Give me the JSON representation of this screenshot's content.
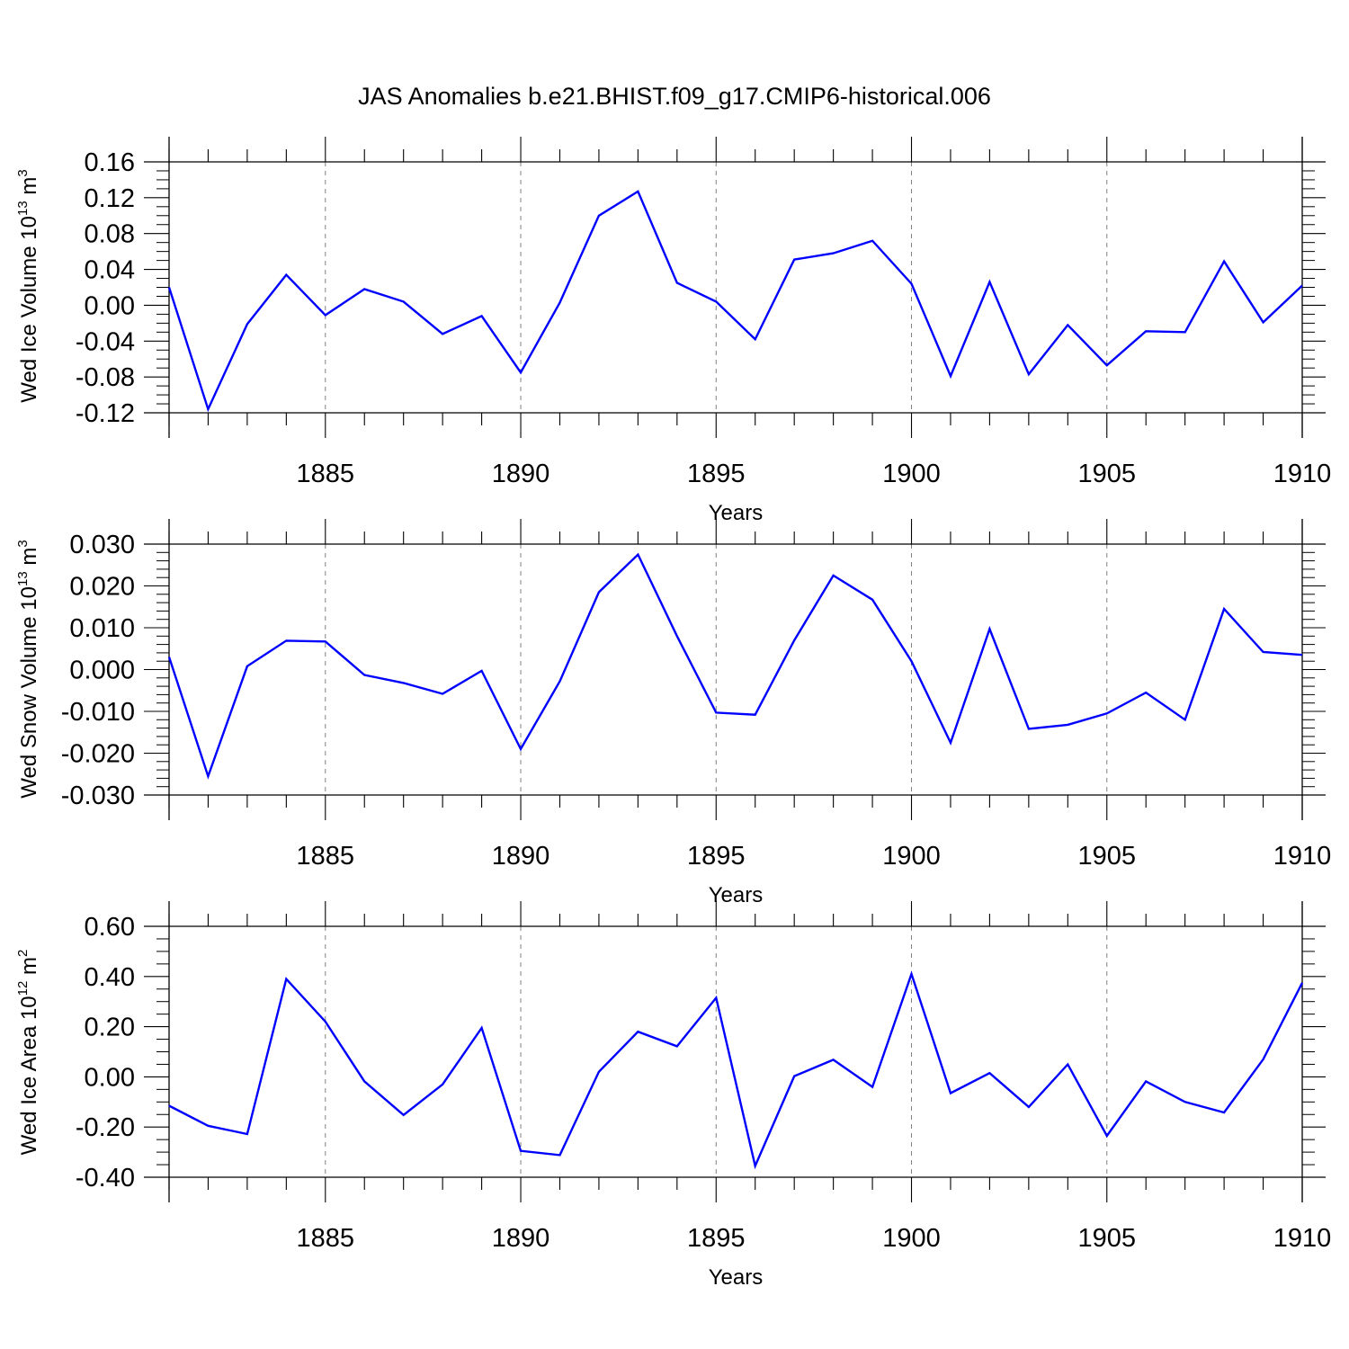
{
  "title": "JAS Anomalies b.e21.BHIST.f09_g17.CMIP6-historical.006",
  "colors": {
    "line": "#0000ff",
    "axis": "#000000",
    "grid": "#808080"
  },
  "chart_data": [
    {
      "type": "line",
      "title": "JAS Anomalies b.e21.BHIST.f09_g17.CMIP6-historical.006",
      "xlabel": "Years",
      "ylabel": {
        "base": "Wed Ice Volume 10",
        "sup": "13",
        "unit": " m",
        "unit_sup": "3"
      },
      "xlim": [
        1881,
        1910
      ],
      "ylim": [
        -0.12,
        0.16
      ],
      "yticks": [
        "-0.12",
        "-0.08",
        "-0.04",
        "0.00",
        "0.04",
        "0.08",
        "0.12",
        "0.16"
      ],
      "xticks": [
        "1885",
        "1890",
        "1895",
        "1900",
        "1905",
        "1910"
      ],
      "x": [
        1881,
        1882,
        1883,
        1884,
        1885,
        1886,
        1887,
        1888,
        1889,
        1890,
        1891,
        1892,
        1893,
        1894,
        1895,
        1896,
        1897,
        1898,
        1899,
        1900,
        1901,
        1902,
        1903,
        1904,
        1905,
        1906,
        1907,
        1908,
        1909,
        1910
      ],
      "series": [
        {
          "name": "Wed Ice Volume",
          "values": [
            0.02,
            -0.116,
            -0.021,
            0.034,
            -0.011,
            0.018,
            0.004,
            -0.032,
            -0.012,
            -0.075,
            0.003,
            0.1,
            0.127,
            0.025,
            0.004,
            -0.038,
            0.051,
            0.058,
            0.072,
            0.024,
            -0.079,
            0.026,
            -0.077,
            -0.022,
            -0.067,
            -0.029,
            -0.03,
            0.049,
            -0.019,
            0.022
          ]
        }
      ]
    },
    {
      "type": "line",
      "xlabel": "Years",
      "ylabel": {
        "base": "Wed Snow Volume 10",
        "sup": "13",
        "unit": " m",
        "unit_sup": "3"
      },
      "xlim": [
        1881,
        1910
      ],
      "ylim": [
        -0.03,
        0.03
      ],
      "yticks": [
        "-0.030",
        "-0.020",
        "-0.010",
        "0.000",
        "0.010",
        "0.020",
        "0.030"
      ],
      "xticks": [
        "1885",
        "1890",
        "1895",
        "1900",
        "1905",
        "1910"
      ],
      "x": [
        1881,
        1882,
        1883,
        1884,
        1885,
        1886,
        1887,
        1888,
        1889,
        1890,
        1891,
        1892,
        1893,
        1894,
        1895,
        1896,
        1897,
        1898,
        1899,
        1900,
        1901,
        1902,
        1903,
        1904,
        1905,
        1906,
        1907,
        1908,
        1909,
        1910
      ],
      "series": [
        {
          "name": "Wed Snow Volume",
          "values": [
            0.003,
            -0.0255,
            0.0008,
            0.0069,
            0.0067,
            -0.0013,
            -0.0032,
            -0.0058,
            -0.0003,
            -0.019,
            -0.0028,
            0.0185,
            0.0275,
            0.008,
            -0.0103,
            -0.0108,
            0.007,
            0.0225,
            0.0167,
            0.002,
            -0.0175,
            0.0097,
            -0.0142,
            -0.0132,
            -0.0105,
            -0.0055,
            -0.012,
            0.0145,
            0.0042,
            0.0035
          ]
        }
      ]
    },
    {
      "type": "line",
      "xlabel": "Years",
      "ylabel": {
        "base": "Wed Ice Area 10",
        "sup": "12",
        "unit": " m",
        "unit_sup": "2"
      },
      "xlim": [
        1881,
        1910
      ],
      "ylim": [
        -0.4,
        0.6
      ],
      "yticks": [
        "-0.40",
        "-0.20",
        "0.00",
        "0.20",
        "0.40",
        "0.60"
      ],
      "xticks": [
        "1885",
        "1890",
        "1895",
        "1900",
        "1905",
        "1910"
      ],
      "x": [
        1881,
        1882,
        1883,
        1884,
        1885,
        1886,
        1887,
        1888,
        1889,
        1890,
        1891,
        1892,
        1893,
        1894,
        1895,
        1896,
        1897,
        1898,
        1899,
        1900,
        1901,
        1902,
        1903,
        1904,
        1905,
        1906,
        1907,
        1908,
        1909,
        1910
      ],
      "series": [
        {
          "name": "Wed Ice Area",
          "values": [
            -0.115,
            -0.195,
            -0.228,
            0.39,
            0.22,
            -0.018,
            -0.152,
            -0.03,
            0.195,
            -0.295,
            -0.312,
            0.02,
            0.18,
            0.122,
            0.315,
            -0.355,
            0.003,
            0.068,
            -0.04,
            0.41,
            -0.065,
            0.015,
            -0.12,
            0.05,
            -0.235,
            -0.018,
            -0.1,
            -0.142,
            0.07,
            0.375
          ]
        }
      ]
    }
  ]
}
